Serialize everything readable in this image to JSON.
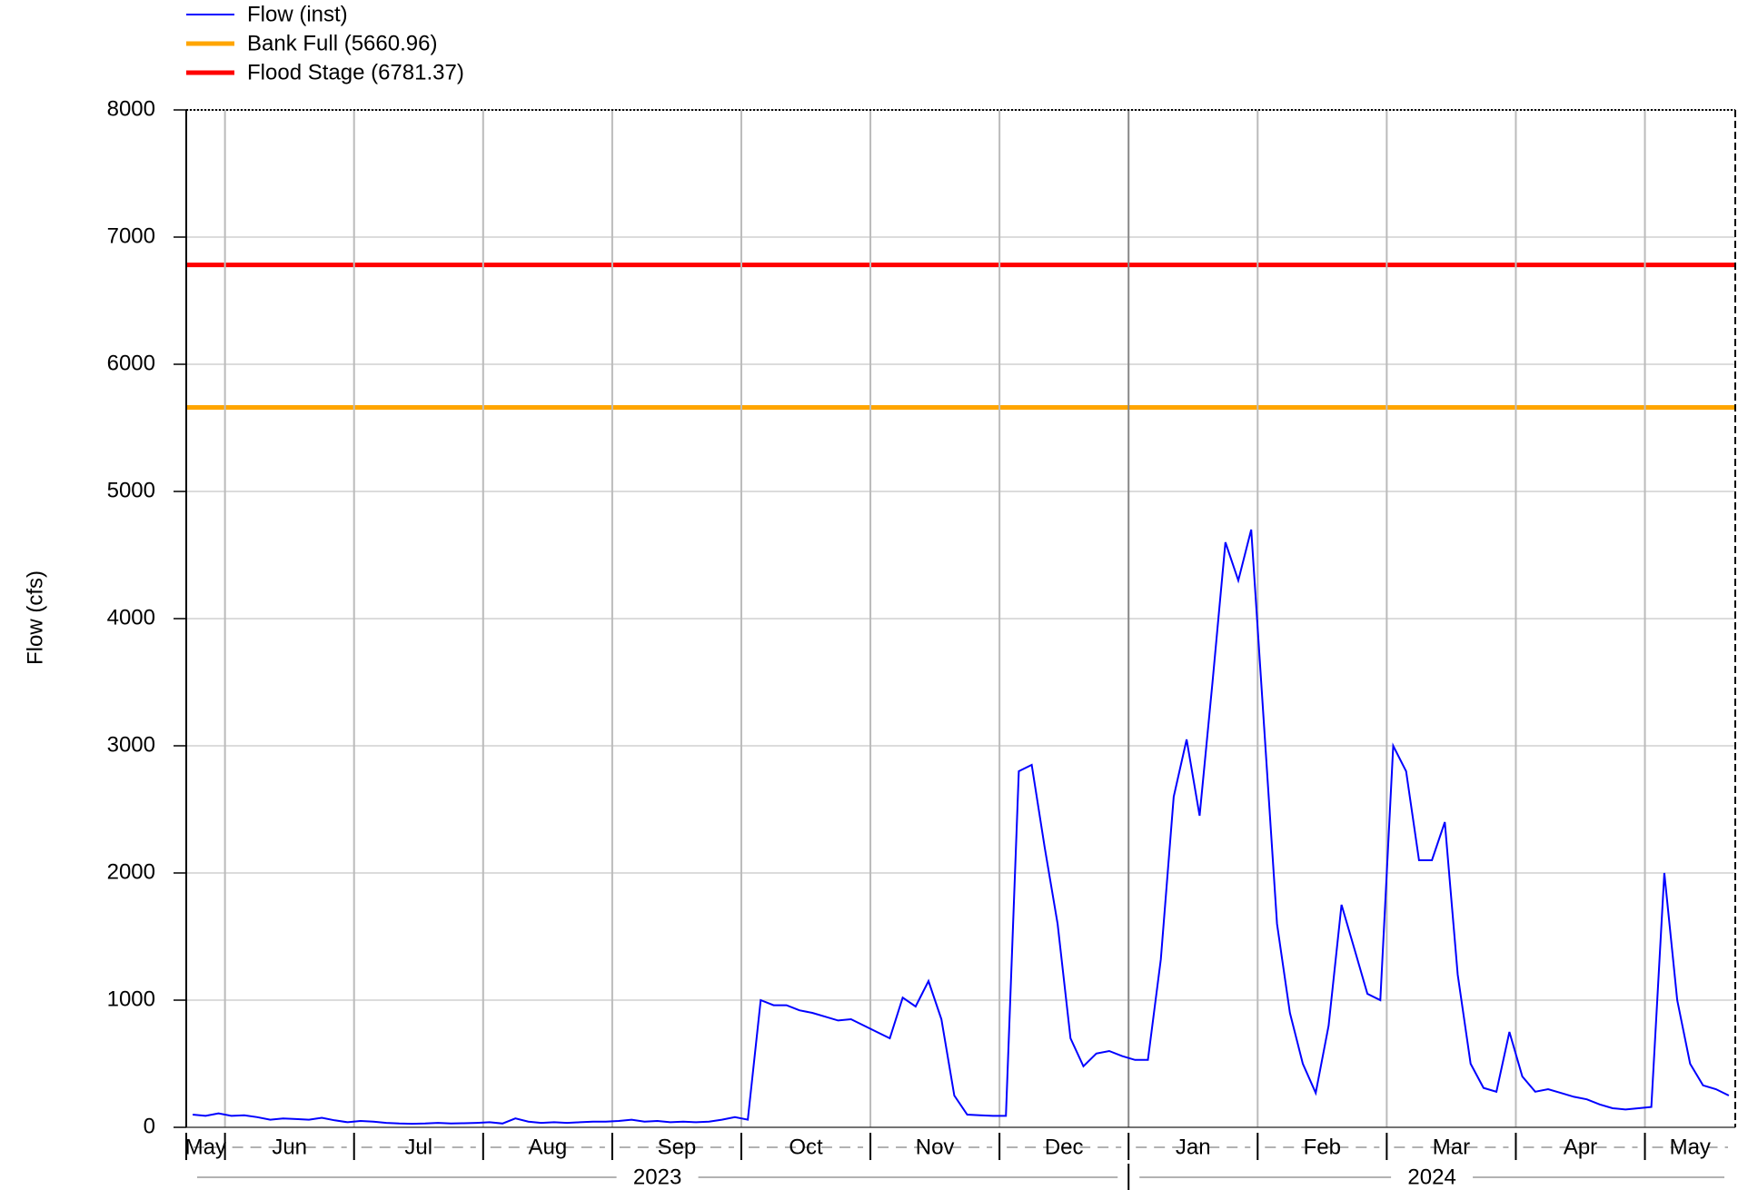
{
  "chart_data": {
    "type": "line",
    "y_label": "Flow (cfs)",
    "ylim": [
      0,
      8000
    ],
    "yticks": [
      0,
      1000,
      2000,
      3000,
      4000,
      5000,
      6000,
      7000,
      8000
    ],
    "grid": true,
    "series": [
      {
        "name": "Flow (inst)",
        "color": "#0000ff",
        "years": [
          {
            "label": "2023",
            "months": [
              {
                "label": "May",
                "values": [
                  100,
                  90,
                  110
                ]
              },
              {
                "label": "Jun",
                "values": [
                  90,
                  95,
                  80,
                  60,
                  70,
                  65,
                  60,
                  75,
                  55,
                  40
                ]
              },
              {
                "label": "Jul",
                "values": [
                  50,
                  45,
                  35,
                  30,
                  28,
                  30,
                  35,
                  30,
                  32,
                  35
                ]
              },
              {
                "label": "Aug",
                "values": [
                  40,
                  30,
                  70,
                  45,
                  35,
                  40,
                  35,
                  40,
                  45,
                  45
                ]
              },
              {
                "label": "Sep",
                "values": [
                  50,
                  60,
                  45,
                  50,
                  40,
                  45,
                  40,
                  45,
                  60,
                  80
                ]
              },
              {
                "label": "Oct",
                "values": [
                  60,
                  1000,
                  960,
                  960,
                  920,
                  900,
                  870,
                  840,
                  850,
                  800
                ]
              },
              {
                "label": "Nov",
                "values": [
                  750,
                  700,
                  1020,
                  950,
                  1150,
                  850,
                  250,
                  100,
                  95,
                  90
                ]
              },
              {
                "label": "Dec",
                "values": [
                  90,
                  2800,
                  2850,
                  2200,
                  1600,
                  700,
                  480,
                  580,
                  600,
                  560
                ]
              }
            ]
          },
          {
            "label": "2024",
            "months": [
              {
                "label": "Jan",
                "values": [
                  530,
                  530,
                  1320,
                  2600,
                  3050,
                  2450,
                  3500,
                  4600,
                  4300,
                  4700
                ]
              },
              {
                "label": "Feb",
                "values": [
                  3150,
                  1600,
                  900,
                  500,
                  270,
                  800,
                  1750,
                  1400,
                  1050,
                  1000
                ]
              },
              {
                "label": "Mar",
                "values": [
                  3000,
                  2800,
                  2100,
                  2100,
                  2400,
                  1200,
                  500,
                  310,
                  280,
                  750
                ]
              },
              {
                "label": "Apr",
                "values": [
                  400,
                  280,
                  300,
                  270,
                  240,
                  220,
                  180,
                  150,
                  140,
                  150
                ]
              },
              {
                "label": "May",
                "values": [
                  160,
                  2000,
                  1000,
                  500,
                  330,
                  300,
                  250
                ]
              }
            ]
          }
        ]
      }
    ],
    "reference_lines": [
      {
        "name": "Bank Full (5660.96)",
        "value": 5660.96,
        "color": "#ffa500"
      },
      {
        "name": "Flood Stage (6781.37)",
        "value": 6781.37,
        "color": "#ff0000"
      }
    ]
  }
}
